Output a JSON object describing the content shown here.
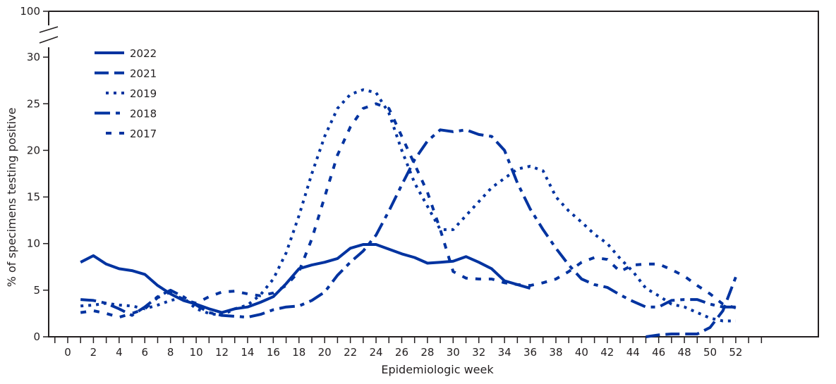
{
  "chart_data": {
    "type": "line",
    "title": "",
    "xlabel": "Epidemiologic week",
    "ylabel": "% of specimens testing positive",
    "xlim": [
      -1,
      55
    ],
    "ylim": [
      0,
      30
    ],
    "y_axis_break": {
      "from": 30,
      "to": 100,
      "top_tick": 100
    },
    "x_ticks": [
      0,
      2,
      4,
      6,
      8,
      10,
      12,
      14,
      16,
      18,
      20,
      22,
      24,
      26,
      28,
      30,
      32,
      34,
      36,
      38,
      40,
      42,
      44,
      46,
      48,
      50,
      52
    ],
    "y_ticks": [
      0,
      5,
      10,
      15,
      20,
      25,
      30,
      100
    ],
    "grid": false,
    "legend_position": "upper-left",
    "line_color": "#0033a0",
    "series": [
      {
        "name": "2022",
        "style": "solid",
        "x": [
          1,
          2,
          3,
          4,
          5,
          6,
          7,
          8,
          9,
          10,
          11,
          12,
          13,
          14,
          15,
          16,
          17,
          18,
          19,
          20,
          21,
          22,
          23,
          24,
          25,
          26,
          27,
          28,
          29,
          30,
          31,
          32,
          33,
          34,
          35,
          36
        ],
        "values": [
          8.0,
          8.7,
          7.8,
          7.3,
          7.1,
          6.7,
          5.5,
          4.6,
          3.9,
          3.5,
          3.0,
          2.6,
          3.0,
          3.2,
          3.7,
          4.3,
          5.7,
          7.3,
          7.7,
          8.0,
          8.4,
          9.5,
          9.9,
          9.9,
          9.4,
          8.9,
          8.5,
          7.9,
          8.0,
          8.1,
          8.6,
          8.0,
          7.3,
          6.0,
          5.6,
          5.2
        ]
      },
      {
        "name": "2021",
        "style": "dashed",
        "x": [
          45,
          46,
          47,
          48,
          49,
          50,
          51,
          52
        ],
        "values": [
          0.0,
          0.2,
          0.3,
          0.3,
          0.3,
          1.0,
          2.8,
          6.4
        ]
      },
      {
        "name": "2019",
        "style": "dotted",
        "x": [
          1,
          2,
          3,
          4,
          5,
          6,
          7,
          8,
          9,
          10,
          11,
          12,
          13,
          14,
          15,
          16,
          17,
          18,
          19,
          20,
          21,
          22,
          23,
          24,
          25,
          26,
          27,
          28,
          29,
          30,
          31,
          32,
          33,
          34,
          35,
          36,
          37,
          38,
          39,
          40,
          41,
          42,
          43,
          44,
          45,
          46,
          47,
          48,
          49,
          50,
          51,
          52
        ],
        "values": [
          3.3,
          3.4,
          3.6,
          3.4,
          3.3,
          3.0,
          3.4,
          3.9,
          4.2,
          3.0,
          2.5,
          2.3,
          3.0,
          3.4,
          4.5,
          6.2,
          9.0,
          13.0,
          17.5,
          21.5,
          24.5,
          26.0,
          26.5,
          26.2,
          24.0,
          20.0,
          16.5,
          14.0,
          11.5,
          11.5,
          13.0,
          14.5,
          16.0,
          17.0,
          18.0,
          18.3,
          17.8,
          15.0,
          13.5,
          12.3,
          11.0,
          10.0,
          8.4,
          7.0,
          5.2,
          4.4,
          3.5,
          3.2,
          2.6,
          2.0,
          1.7,
          1.7
        ]
      },
      {
        "name": "2018",
        "style": "dash-dot",
        "x": [
          1,
          2,
          3,
          4,
          5,
          6,
          7,
          8,
          9,
          10,
          11,
          12,
          13,
          14,
          15,
          16,
          17,
          18,
          19,
          20,
          21,
          22,
          23,
          24,
          25,
          26,
          27,
          28,
          29,
          30,
          31,
          32,
          33,
          34,
          35,
          36,
          37,
          38,
          39,
          40,
          41,
          42,
          43,
          44,
          45,
          46,
          47,
          48,
          49,
          50,
          51,
          52
        ],
        "values": [
          4.0,
          3.9,
          3.6,
          3.0,
          2.3,
          3.2,
          4.3,
          5.0,
          4.3,
          3.4,
          2.6,
          2.3,
          2.2,
          2.1,
          2.4,
          2.9,
          3.2,
          3.3,
          3.9,
          4.8,
          6.6,
          8.0,
          9.2,
          10.9,
          13.5,
          16.3,
          19.0,
          21.0,
          22.2,
          22.0,
          22.2,
          21.7,
          21.5,
          20.0,
          16.5,
          13.7,
          11.5,
          9.5,
          7.7,
          6.2,
          5.6,
          5.3,
          4.5,
          3.8,
          3.2,
          3.2,
          3.9,
          4.0,
          4.0,
          3.5,
          3.2,
          3.2
        ]
      },
      {
        "name": "2017",
        "style": "short-dashed",
        "x": [
          1,
          2,
          3,
          4,
          5,
          6,
          7,
          8,
          9,
          10,
          11,
          12,
          13,
          14,
          15,
          16,
          17,
          18,
          19,
          20,
          21,
          22,
          23,
          24,
          25,
          26,
          27,
          28,
          29,
          30,
          31,
          32,
          33,
          34,
          35,
          36,
          37,
          38,
          39,
          40,
          41,
          42,
          43,
          44,
          45,
          46,
          47,
          48,
          49,
          50,
          51,
          52
        ],
        "values": [
          2.6,
          2.8,
          2.5,
          2.1,
          2.5,
          3.0,
          4.2,
          4.8,
          4.0,
          3.6,
          4.3,
          4.8,
          4.9,
          4.6,
          4.4,
          4.7,
          5.5,
          7.0,
          10.5,
          15.0,
          19.5,
          22.5,
          24.5,
          25.0,
          24.5,
          21.5,
          18.5,
          15.5,
          11.5,
          7.0,
          6.3,
          6.2,
          6.2,
          5.8,
          5.6,
          5.5,
          5.8,
          6.2,
          7.0,
          8.0,
          8.5,
          8.3,
          7.0,
          7.7,
          7.8,
          7.8,
          7.2,
          6.5,
          5.5,
          4.6,
          3.5,
          3.1
        ]
      }
    ]
  },
  "legend": {
    "items": [
      {
        "label": "2022",
        "style": "solid"
      },
      {
        "label": "2021",
        "style": "dashed"
      },
      {
        "label": "2019",
        "style": "dotted"
      },
      {
        "label": "2018",
        "style": "dash-dot"
      },
      {
        "label": "2017",
        "style": "short-dashed"
      }
    ]
  }
}
